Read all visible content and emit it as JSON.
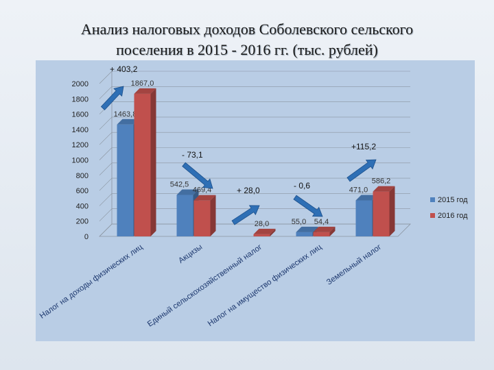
{
  "title": {
    "line1": "Анализ налоговых доходов Соболевского сельского",
    "line2": "поселения в 2015 - 2016 гг. (тыс. рублей)"
  },
  "chart_data": {
    "type": "bar",
    "title": "Анализ налоговых доходов Соболевского сельского поселения в 2015 - 2016 гг. (тыс. рублей)",
    "categories": [
      "Налог на доходы физических лиц",
      "Акцизы",
      "Единый сельскохозяйственный налог",
      "Налог на имущество физических лиц",
      "Земельный налог"
    ],
    "series": [
      {
        "name": "2015 год",
        "values": [
          1463.8,
          542.5,
          null,
          55.0,
          471.0
        ],
        "labels": [
          "1463,8",
          "542,5",
          "",
          "55,0",
          "471,0"
        ],
        "color": "#4f81bd"
      },
      {
        "name": "2016 год",
        "values": [
          1867.0,
          469.4,
          28.0,
          54.4,
          586.2
        ],
        "labels": [
          "1867,0",
          "469,4",
          "28,0",
          "54,4",
          "586,2"
        ],
        "color": "#c0504d"
      }
    ],
    "ylim": [
      0,
      2000
    ],
    "yticks": [
      "0",
      "200",
      "400",
      "600",
      "800",
      "1000",
      "1200",
      "1400",
      "1600",
      "1800",
      "2000"
    ],
    "grid": true,
    "legend": "right",
    "annotations": [
      {
        "text": "+ 403,2",
        "category": 0,
        "direction": "up"
      },
      {
        "text": "- 73,1",
        "category": 1,
        "direction": "down"
      },
      {
        "text": "+ 28,0",
        "category": 2,
        "direction": "up"
      },
      {
        "text": "- 0,6",
        "category": 3,
        "direction": "down"
      },
      {
        "text": "+115,2",
        "category": 4,
        "direction": "up"
      }
    ]
  }
}
